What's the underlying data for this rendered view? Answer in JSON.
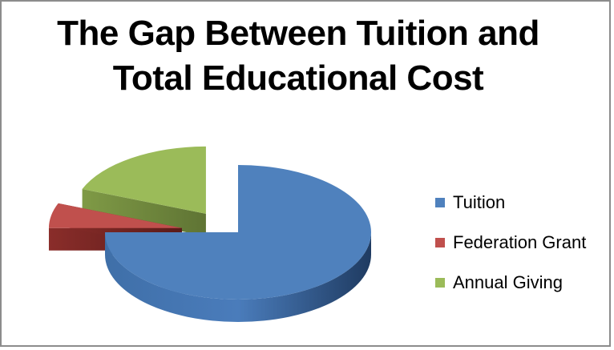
{
  "chart_data": {
    "type": "pie",
    "title": "The Gap Between Tuition and Total Educational Cost",
    "title_lines": [
      "The Gap Between Tuition and",
      "Total Educational Cost"
    ],
    "categories": [
      "Tuition",
      "Federation Grant",
      "Annual Giving"
    ],
    "values": [
      75,
      6,
      19
    ],
    "unit": "%",
    "colors": [
      "#4f81bd",
      "#c0504d",
      "#9bbb59"
    ],
    "exploded": [
      false,
      true,
      true
    ],
    "style": "3d",
    "legend_position": "right"
  }
}
